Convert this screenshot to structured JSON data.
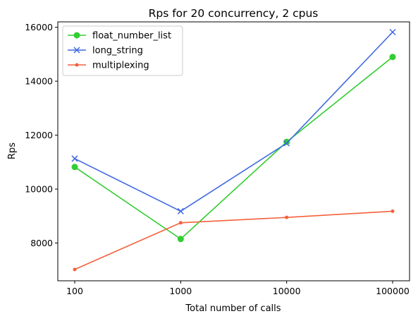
{
  "chart_data": {
    "type": "line",
    "title": "Rps for 20 concurrency, 2 cpus",
    "xlabel": "Total number of calls",
    "ylabel": "Rps",
    "categories": [
      "100",
      "1000",
      "10000",
      "100000"
    ],
    "ylim": [
      6600,
      16200
    ],
    "yticks": [
      8000,
      10000,
      12000,
      14000,
      16000
    ],
    "grid": false,
    "legend_position": "top-left",
    "series": [
      {
        "name": "float_number_list",
        "color": "#32cd32",
        "marker": "circle",
        "values": [
          10820,
          8150,
          11750,
          14900
        ]
      },
      {
        "name": "long_string",
        "color": "#4169e1",
        "marker": "x",
        "values": [
          11130,
          9180,
          11700,
          15820
        ]
      },
      {
        "name": "multiplexing",
        "color": "#f4613c",
        "marker": "dot",
        "values": [
          7020,
          8750,
          8950,
          9180
        ]
      }
    ]
  }
}
